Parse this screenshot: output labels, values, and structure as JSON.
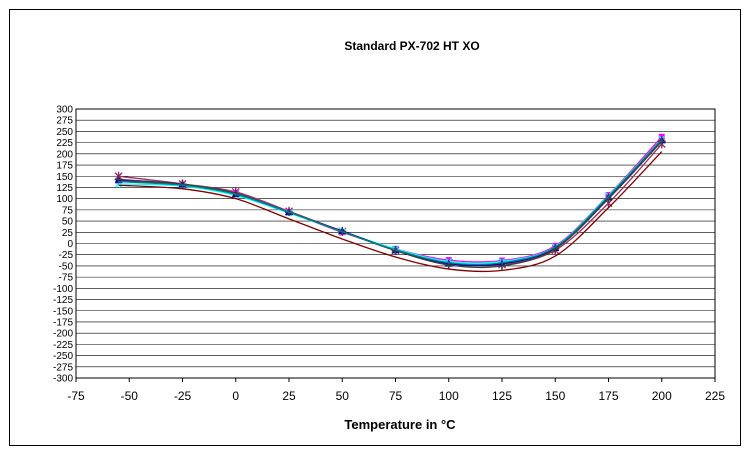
{
  "chart_data": {
    "type": "line",
    "title": "Standard PX-702 HT XO",
    "xlabel": "Temperature in °C",
    "ylabel": "",
    "xlim": [
      -75,
      225
    ],
    "ylim": [
      -300,
      300
    ],
    "xticks": [
      -75,
      -50,
      -25,
      0,
      25,
      50,
      75,
      100,
      125,
      150,
      175,
      200,
      225
    ],
    "yticks": [
      300,
      275,
      250,
      225,
      200,
      175,
      150,
      125,
      100,
      75,
      50,
      25,
      0,
      -25,
      -50,
      -75,
      -100,
      -125,
      -150,
      -175,
      -200,
      -225,
      -250,
      -275,
      -300
    ],
    "grid": "horizontal",
    "legend": "none",
    "series": [
      {
        "color": "#993366",
        "marker": "asterisk",
        "x": [
          -55,
          -25,
          0,
          25,
          50,
          75,
          100,
          125,
          150,
          175,
          200
        ],
        "y": [
          150,
          133,
          115,
          72,
          27,
          -15,
          -43,
          -47,
          -15,
          90,
          222
        ]
      },
      {
        "color": "#ff00ff",
        "marker": "square",
        "x": [
          -55,
          -25,
          0,
          25,
          50,
          75,
          100,
          125,
          150,
          175,
          200
        ],
        "y": [
          140,
          130,
          112,
          70,
          25,
          -12,
          -37,
          -38,
          -5,
          108,
          238
        ]
      },
      {
        "color": "#00ffff",
        "marker": "x",
        "x": [
          -55,
          -25,
          0,
          25,
          50,
          75,
          100,
          125,
          150,
          175,
          200
        ],
        "y": [
          133,
          128,
          107,
          68,
          27,
          -12,
          -40,
          -40,
          -7,
          107,
          233
        ]
      },
      {
        "color": "#0000aa",
        "marker": "triangle",
        "x": [
          -55,
          -25,
          0,
          25,
          50,
          75,
          100,
          125,
          150,
          175,
          200
        ],
        "y": [
          142,
          132,
          110,
          70,
          28,
          -15,
          -45,
          -45,
          -10,
          103,
          230
        ]
      },
      {
        "color": "#3d3d3d",
        "marker": "cross",
        "x": [
          -55,
          -25,
          0,
          25,
          50,
          75,
          100,
          125,
          150,
          175,
          200
        ],
        "y": [
          143,
          132,
          112,
          70,
          27,
          -16,
          -48,
          -50,
          -12,
          100,
          228
        ]
      },
      {
        "color": "#008080",
        "marker": "none",
        "x": [
          -55,
          -25,
          0,
          25,
          50,
          75,
          100,
          125,
          150,
          175,
          200
        ],
        "y": [
          138,
          130,
          110,
          70,
          26,
          -14,
          -43,
          -43,
          -8,
          105,
          232
        ]
      },
      {
        "color": "#800000",
        "marker": "none",
        "x": [
          -55,
          -25,
          0,
          25,
          50,
          75,
          100,
          125,
          150,
          175,
          200
        ],
        "y": [
          130,
          122,
          100,
          55,
          10,
          -30,
          -57,
          -60,
          -28,
          80,
          205
        ]
      }
    ]
  }
}
